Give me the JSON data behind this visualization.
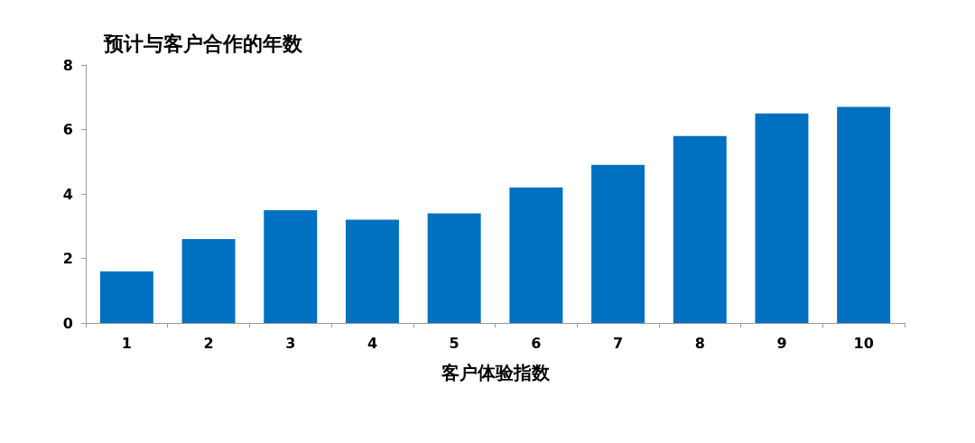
{
  "chart_data": {
    "type": "bar",
    "title": "预计与客户合作的年数",
    "xlabel": "客户体验指数",
    "categories": [
      "1",
      "2",
      "3",
      "4",
      "5",
      "6",
      "7",
      "8",
      "9",
      "10"
    ],
    "values": [
      1.6,
      2.6,
      3.5,
      3.2,
      3.4,
      4.2,
      4.9,
      5.8,
      6.5,
      6.7
    ],
    "color": "#0070c0",
    "ylim": [
      0,
      8
    ],
    "yticks": [
      0,
      2,
      4,
      6,
      8
    ],
    "grid": false
  }
}
